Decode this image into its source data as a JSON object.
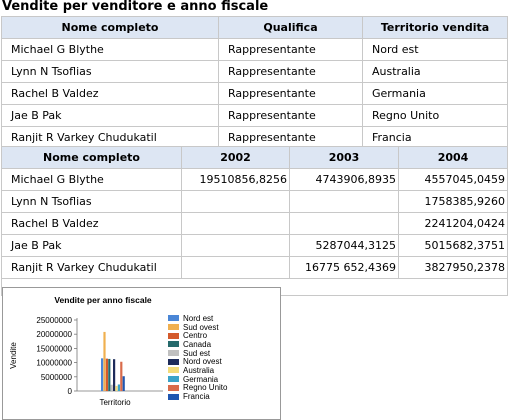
{
  "title": "Vendite per venditore e anno fiscale",
  "table1": {
    "headers": [
      "Nome completo",
      "Qualifica",
      "Territorio vendita"
    ],
    "rows": [
      [
        "Michael G Blythe",
        "Rappresentante",
        "Nord est"
      ],
      [
        "Lynn N Tsoflias",
        "Rappresentante",
        "Australia"
      ],
      [
        "Rachel B Valdez",
        "Rappresentante",
        "Germania"
      ],
      [
        "Jae B Pak",
        "Rappresentante",
        "Regno Unito"
      ],
      [
        "Ranjit R Varkey Chudukatil",
        "Rappresentante",
        "Francia"
      ]
    ]
  },
  "table2": {
    "headers": [
      "Nome completo",
      "2002",
      "2003",
      "2004"
    ],
    "rows": [
      [
        "Michael G Blythe",
        "19510856,8256",
        "4743906,8935",
        "4557045,0459"
      ],
      [
        "Lynn N Tsoflias",
        "",
        "",
        "1758385,9260"
      ],
      [
        "Rachel B Valdez",
        "",
        "",
        "2241204,0424"
      ],
      [
        "Jae B Pak",
        "",
        "5287044,3125",
        "5015682,3751"
      ],
      [
        "Ranjit R Varkey Chudukatil",
        "",
        "16775 652,4369",
        "3827950,2378"
      ]
    ]
  },
  "chart_data": {
    "type": "bar",
    "title": "Vendite per anno fiscale",
    "xlabel": "Territorio",
    "ylabel": "Vendite",
    "ylim": [
      0,
      25000000
    ],
    "yticks": [
      "0",
      "5000000",
      "10000000",
      "15000000",
      "20000000",
      "25000000"
    ],
    "categories": [
      ""
    ],
    "series": [
      {
        "name": "Nord est",
        "values": [
          11500000
        ],
        "color": "#4a86d6"
      },
      {
        "name": "Sud ovest",
        "values": [
          20800000
        ],
        "color": "#f0b050"
      },
      {
        "name": "Centro",
        "values": [
          11400000
        ],
        "color": "#d45a2c"
      },
      {
        "name": "Canada",
        "values": [
          11300000
        ],
        "color": "#256a6c"
      },
      {
        "name": "Sud est",
        "values": [
          2200000
        ],
        "color": "#c0c0c0"
      },
      {
        "name": "Nord ovest",
        "values": [
          11200000
        ],
        "color": "#1d2b5a"
      },
      {
        "name": "Australia",
        "values": [
          1800000
        ],
        "color": "#f3dc7a"
      },
      {
        "name": "Germania",
        "values": [
          2300000
        ],
        "color": "#3aa3c9"
      },
      {
        "name": "Regno Unito",
        "values": [
          10300000
        ],
        "color": "#d96b4b"
      },
      {
        "name": "Francia",
        "values": [
          5200000
        ],
        "color": "#1f56b0"
      }
    ]
  }
}
